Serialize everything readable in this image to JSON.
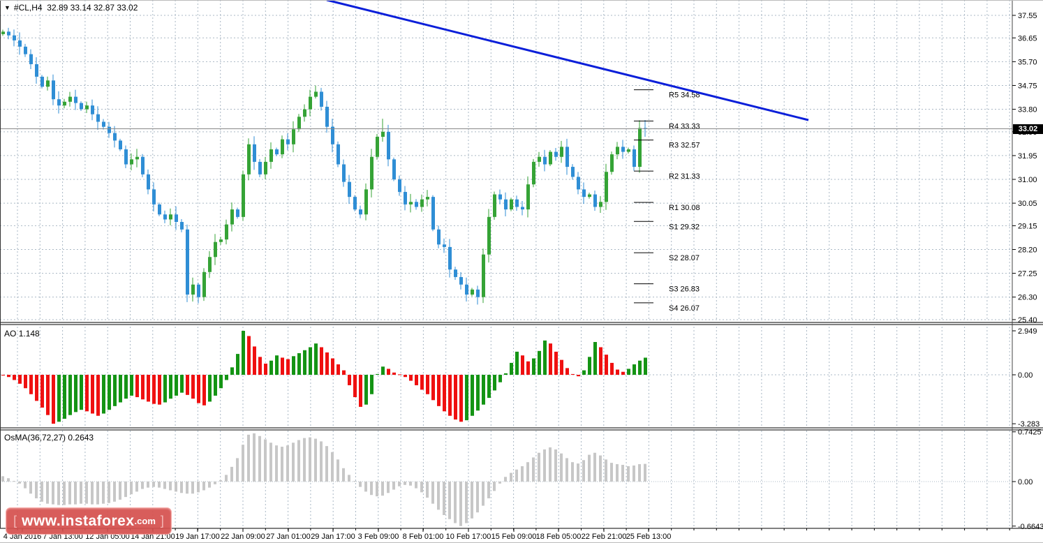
{
  "ui": {
    "title": {
      "dropdown_icon": "▼",
      "symbol": "#CL,H4",
      "ohlc": "32.89 33.14 32.87 33.02"
    },
    "ao_title": {
      "name": "AO",
      "value": "1.148"
    },
    "osma_title": {
      "name": "OsMA(36,72,27)",
      "value": "0.2643"
    },
    "price_badge": "33.02",
    "watermark": {
      "open_bracket": "[",
      "text": "www.instaforex",
      "suffix": ".com",
      "close_bracket": "]"
    }
  },
  "colors": {
    "candle_up": "#35a336",
    "candle_down": "#2f8ed5",
    "ao_up": "#149414",
    "ao_down": "#ef1010",
    "osma_bar": "#c7c7c7",
    "grid": "#a9b7c4",
    "trendline": "#0b1fd9",
    "separator": "#000000",
    "axis_line": "#444444",
    "price_line": "#888888",
    "badge_bg": "#000000",
    "watermark_bg": "#d5504e"
  },
  "chart_data": [
    {
      "type": "candlestick",
      "title": "#CL,H4",
      "ylim": [
        25.4,
        37.55
      ],
      "price_axis_ticks": [
        37.55,
        36.65,
        35.7,
        34.75,
        33.8,
        32.9,
        31.95,
        31.0,
        30.05,
        29.15,
        28.2,
        27.25,
        26.3,
        25.4
      ],
      "current_price": 33.02,
      "first_open": 36.8,
      "closes": [
        36.9,
        36.75,
        36.55,
        36.3,
        36.0,
        35.6,
        35.1,
        34.7,
        34.95,
        34.2,
        33.95,
        34.1,
        34.3,
        34.05,
        33.8,
        33.95,
        33.6,
        33.3,
        33.1,
        32.85,
        32.55,
        32.2,
        31.6,
        31.8,
        31.9,
        31.2,
        30.6,
        30.0,
        29.6,
        29.4,
        29.6,
        29.3,
        29.0,
        26.4,
        26.8,
        26.3,
        27.3,
        27.9,
        28.5,
        28.6,
        29.2,
        29.8,
        29.5,
        31.2,
        32.4,
        31.7,
        31.2,
        31.7,
        32.2,
        32.0,
        32.6,
        32.4,
        33.0,
        33.5,
        33.8,
        34.3,
        34.5,
        33.9,
        33.1,
        32.4,
        31.6,
        30.9,
        30.3,
        29.8,
        29.6,
        30.6,
        31.9,
        32.7,
        32.9,
        31.8,
        31.0,
        30.5,
        30.0,
        30.1,
        29.9,
        30.2,
        30.3,
        29.0,
        28.4,
        28.3,
        27.4,
        27.1,
        26.8,
        26.4,
        26.6,
        26.3,
        28.0,
        29.5,
        30.4,
        30.2,
        29.8,
        30.2,
        29.9,
        29.8,
        30.8,
        31.7,
        31.9,
        31.6,
        32.1,
        31.9,
        32.3,
        31.5,
        31.1,
        30.6,
        30.3,
        30.4,
        29.9,
        30.1,
        31.3,
        32.0,
        32.3,
        32.1,
        32.2,
        31.5,
        33.05,
        33.02
      ],
      "spike_lows": {
        "33": 26.1,
        "35": 26.05,
        "85": 26.0
      },
      "spike_highs": {
        "0": 36.98,
        "56": 34.75,
        "68": 33.42,
        "114": 33.36
      },
      "x_axis_labels": [
        {
          "label": "4 Jan 2016",
          "x": 32
        },
        {
          "label": "7 Jan 13:00",
          "x": 90
        },
        {
          "label": "12 Jan 05:00",
          "x": 154
        },
        {
          "label": "14 Jan 21:00",
          "x": 219
        },
        {
          "label": "19 Jan 17:00",
          "x": 283
        },
        {
          "label": "22 Jan 09:00",
          "x": 348
        },
        {
          "label": "27 Jan 01:00",
          "x": 413
        },
        {
          "label": "29 Jan 17:00",
          "x": 477
        },
        {
          "label": "3 Feb 09:00",
          "x": 542
        },
        {
          "label": "8 Feb 01:00",
          "x": 606
        },
        {
          "label": "10 Feb 17:00",
          "x": 671
        },
        {
          "label": "15 Feb 09:00",
          "x": 736
        },
        {
          "label": "18 Feb 05:00",
          "x": 800
        },
        {
          "label": "22 Feb 21:00",
          "x": 865
        },
        {
          "label": "25 Feb 13:00",
          "x": 929
        }
      ],
      "pivot_levels": [
        {
          "name": "R5",
          "value": 34.58
        },
        {
          "name": "R4",
          "value": 33.33
        },
        {
          "name": "R3",
          "value": 32.57
        },
        {
          "name": "R2",
          "value": 31.33
        },
        {
          "name": "R1",
          "value": 30.08
        },
        {
          "name": "S1",
          "value": 29.32
        },
        {
          "name": "S2",
          "value": 28.07
        },
        {
          "name": "S3",
          "value": 26.83
        },
        {
          "name": "S4",
          "value": 26.07
        }
      ],
      "trendline": {
        "x1": 468,
        "y1": 0,
        "x2": 1158,
        "y2": 172
      }
    },
    {
      "type": "bar",
      "name": "AO",
      "current": 1.148,
      "axis_ticks": [
        "2.949",
        "0.00",
        "-3.283"
      ],
      "ylim": [
        -3.283,
        2.949
      ],
      "values": [
        -0.05,
        -0.15,
        -0.35,
        -0.6,
        -0.9,
        -1.3,
        -1.75,
        -2.2,
        -2.7,
        -3.283,
        -3.15,
        -2.95,
        -2.7,
        -2.5,
        -2.35,
        -2.45,
        -2.6,
        -2.75,
        -2.6,
        -2.35,
        -2.1,
        -1.85,
        -1.6,
        -1.4,
        -1.5,
        -1.65,
        -1.8,
        -1.95,
        -2.0,
        -1.85,
        -1.6,
        -1.4,
        -1.2,
        -1.35,
        -1.6,
        -1.9,
        -2.05,
        -1.8,
        -1.4,
        -0.9,
        -0.35,
        0.5,
        1.4,
        2.949,
        2.6,
        1.9,
        1.2,
        0.75,
        0.95,
        1.3,
        1.15,
        1.05,
        1.25,
        1.45,
        1.65,
        1.85,
        2.1,
        1.85,
        1.5,
        1.1,
        0.7,
        0.3,
        -0.7,
        -1.5,
        -2.15,
        -2.0,
        -1.3,
        0.05,
        0.55,
        0.4,
        0.15,
        0.03,
        -0.15,
        -0.4,
        -0.7,
        -1.0,
        -1.3,
        -1.7,
        -2.1,
        -2.45,
        -2.75,
        -3.0,
        -3.15,
        -3.05,
        -2.75,
        -2.4,
        -2.0,
        -1.55,
        -1.05,
        -0.5,
        0.1,
        0.8,
        1.55,
        1.3,
        0.9,
        1.1,
        1.6,
        2.3,
        2.1,
        1.55,
        1.0,
        0.45,
        0.05,
        -0.1,
        0.3,
        1.2,
        2.2,
        1.85,
        1.35,
        0.8,
        0.35,
        0.2,
        0.4,
        0.7,
        0.95,
        1.148
      ]
    },
    {
      "type": "bar",
      "name": "OsMA",
      "params": "36,72,27",
      "current": 0.2643,
      "axis_ticks": [
        "0.7425",
        "0.00",
        "-0.6643"
      ],
      "ylim": [
        -0.6643,
        0.7425
      ],
      "values": [
        0.08,
        0.05,
        0.01,
        -0.03,
        -0.1,
        -0.18,
        -0.25,
        -0.3,
        -0.33,
        -0.34,
        -0.35,
        -0.35,
        -0.34,
        -0.34,
        -0.33,
        -0.33,
        -0.34,
        -0.34,
        -0.33,
        -0.32,
        -0.3,
        -0.27,
        -0.23,
        -0.19,
        -0.15,
        -0.11,
        -0.09,
        -0.08,
        -0.09,
        -0.11,
        -0.13,
        -0.15,
        -0.17,
        -0.18,
        -0.18,
        -0.16,
        -0.13,
        -0.09,
        -0.04,
        0.02,
        0.1,
        0.22,
        0.35,
        0.55,
        0.7,
        0.72,
        0.68,
        0.63,
        0.58,
        0.54,
        0.52,
        0.54,
        0.58,
        0.62,
        0.65,
        0.66,
        0.64,
        0.6,
        0.53,
        0.44,
        0.33,
        0.2,
        0.1,
        0.01,
        -0.08,
        -0.15,
        -0.2,
        -0.22,
        -0.21,
        -0.17,
        -0.12,
        -0.07,
        -0.05,
        -0.06,
        -0.1,
        -0.16,
        -0.24,
        -0.33,
        -0.42,
        -0.5,
        -0.56,
        -0.62,
        -0.6643,
        -0.62,
        -0.55,
        -0.46,
        -0.36,
        -0.25,
        -0.14,
        -0.03,
        0.07,
        0.13,
        0.18,
        0.23,
        0.29,
        0.36,
        0.43,
        0.48,
        0.51,
        0.48,
        0.42,
        0.35,
        0.29,
        0.27,
        0.32,
        0.4,
        0.43,
        0.39,
        0.33,
        0.28,
        0.26,
        0.25,
        0.23,
        0.24,
        0.26,
        0.2643
      ]
    }
  ]
}
